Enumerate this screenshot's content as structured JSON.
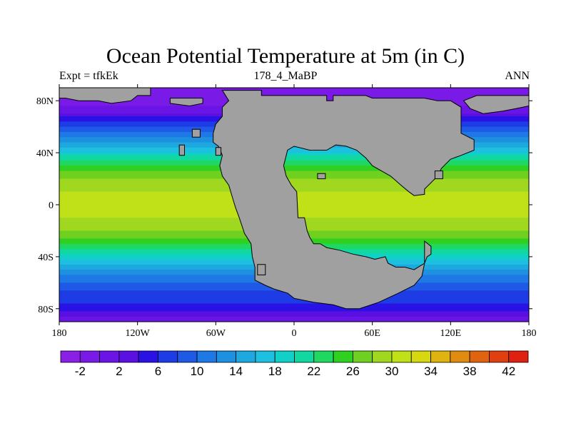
{
  "title": "Ocean Potential Temperature at 5m (in C)",
  "left_label": "Expt = tfkEk",
  "center_label": "178_4_MaBP",
  "right_label": "ANN",
  "x_ticks": [
    {
      "lon": -180,
      "label": "180"
    },
    {
      "lon": -120,
      "label": "120W"
    },
    {
      "lon": -60,
      "label": "60W"
    },
    {
      "lon": 0,
      "label": "0"
    },
    {
      "lon": 60,
      "label": "60E"
    },
    {
      "lon": 120,
      "label": "120E"
    },
    {
      "lon": 180,
      "label": "180"
    }
  ],
  "y_ticks": [
    {
      "lat": 80,
      "label": "80N"
    },
    {
      "lat": 40,
      "label": "40N"
    },
    {
      "lat": 0,
      "label": "0"
    },
    {
      "lat": -40,
      "label": "40S"
    },
    {
      "lat": -80,
      "label": "80S"
    }
  ],
  "lon_range": [
    -180,
    180
  ],
  "lat_range": [
    -90,
    90
  ],
  "land_color": "#a0a0a0",
  "colorbar": {
    "levels": [
      -4,
      -2,
      0,
      2,
      4,
      6,
      8,
      10,
      12,
      14,
      16,
      18,
      20,
      22,
      24,
      26,
      28,
      30,
      32,
      34,
      36,
      38,
      40,
      42,
      44
    ],
    "labels": [
      "-2",
      "2",
      "6",
      "10",
      "14",
      "18",
      "22",
      "26",
      "30",
      "34",
      "38",
      "42"
    ],
    "colors": [
      "#8a1fe6",
      "#7a1ae6",
      "#6a14e6",
      "#5a10e0",
      "#2a12e6",
      "#1e3ce6",
      "#1e5ae6",
      "#1e78e6",
      "#1e90e0",
      "#1ea8e0",
      "#1ec0e0",
      "#10d0c8",
      "#10d8a0",
      "#20d860",
      "#30d020",
      "#70d020",
      "#a0d820",
      "#c0e018",
      "#d8d810",
      "#e0b410",
      "#e08c10",
      "#e06410",
      "#e04010",
      "#e02010"
    ]
  },
  "bands": [
    {
      "lat": 90,
      "temp": -2
    },
    {
      "lat": 80,
      "temp": -1
    },
    {
      "lat": 72,
      "temp": 1
    },
    {
      "lat": 64,
      "temp": 6
    },
    {
      "lat": 56,
      "temp": 10
    },
    {
      "lat": 48,
      "temp": 14
    },
    {
      "lat": 40,
      "temp": 18
    },
    {
      "lat": 34,
      "temp": 22
    },
    {
      "lat": 28,
      "temp": 25
    },
    {
      "lat": 20,
      "temp": 28
    },
    {
      "lat": 10,
      "temp": 30
    },
    {
      "lat": 0,
      "temp": 31
    },
    {
      "lat": -10,
      "temp": 30
    },
    {
      "lat": -20,
      "temp": 28
    },
    {
      "lat": -30,
      "temp": 24
    },
    {
      "lat": -38,
      "temp": 20
    },
    {
      "lat": -46,
      "temp": 16
    },
    {
      "lat": -54,
      "temp": 12
    },
    {
      "lat": -62,
      "temp": 9
    },
    {
      "lat": -70,
      "temp": 7
    },
    {
      "lat": -80,
      "temp": 5
    },
    {
      "lat": -86,
      "temp": 2
    },
    {
      "lat": -90,
      "temp": 1
    }
  ],
  "land_masses": [
    {
      "name": "pangaea-main",
      "points": [
        [
          -55,
          88
        ],
        [
          -25,
          88
        ],
        [
          -25,
          84
        ],
        [
          25,
          84
        ],
        [
          25,
          80
        ],
        [
          30,
          80
        ],
        [
          30,
          84
        ],
        [
          55,
          84
        ],
        [
          60,
          82
        ],
        [
          100,
          82
        ],
        [
          110,
          80
        ],
        [
          120,
          80
        ],
        [
          128,
          75
        ],
        [
          128,
          55
        ],
        [
          138,
          50
        ],
        [
          138,
          42
        ],
        [
          128,
          38
        ],
        [
          120,
          35
        ],
        [
          113,
          28
        ],
        [
          110,
          22
        ],
        [
          100,
          12
        ],
        [
          100,
          8
        ],
        [
          92,
          7
        ],
        [
          88,
          10
        ],
        [
          82,
          15
        ],
        [
          74,
          22
        ],
        [
          60,
          30
        ],
        [
          55,
          36
        ],
        [
          48,
          42
        ],
        [
          40,
          45
        ],
        [
          32,
          46
        ],
        [
          25,
          42
        ],
        [
          12,
          42
        ],
        [
          0,
          45
        ],
        [
          -5,
          42
        ],
        [
          -8,
          30
        ],
        [
          -6,
          22
        ],
        [
          -2,
          15
        ],
        [
          2,
          10
        ],
        [
          3,
          -10
        ],
        [
          8,
          -10
        ],
        [
          10,
          -20
        ],
        [
          12,
          -25
        ],
        [
          15,
          -30
        ],
        [
          20,
          -30
        ],
        [
          25,
          -33
        ],
        [
          35,
          -35
        ],
        [
          45,
          -38
        ],
        [
          55,
          -40
        ],
        [
          62,
          -42
        ],
        [
          70,
          -40
        ],
        [
          72,
          -45
        ],
        [
          78,
          -48
        ],
        [
          85,
          -48
        ],
        [
          92,
          -50
        ],
        [
          100,
          -45
        ],
        [
          102,
          -40
        ],
        [
          105,
          -38
        ],
        [
          105,
          -32
        ],
        [
          100,
          -28
        ],
        [
          100,
          -45
        ],
        [
          98,
          -55
        ],
        [
          92,
          -62
        ],
        [
          80,
          -68
        ],
        [
          65,
          -75
        ],
        [
          50,
          -80
        ],
        [
          40,
          -80
        ],
        [
          30,
          -77
        ],
        [
          15,
          -75
        ],
        [
          0,
          -72
        ],
        [
          -5,
          -68
        ],
        [
          -15,
          -65
        ],
        [
          -22,
          -62
        ],
        [
          -30,
          -58
        ],
        [
          -30,
          -48
        ],
        [
          -32,
          -40
        ],
        [
          -33,
          -30
        ],
        [
          -38,
          -22
        ],
        [
          -42,
          -10
        ],
        [
          -45,
          -2
        ],
        [
          -48,
          8
        ],
        [
          -50,
          15
        ],
        [
          -55,
          22
        ],
        [
          -57,
          30
        ],
        [
          -55,
          38
        ],
        [
          -58,
          45
        ],
        [
          -62,
          48
        ],
        [
          -62,
          55
        ],
        [
          -60,
          62
        ],
        [
          -55,
          68
        ],
        [
          -55,
          75
        ],
        [
          -50,
          80
        ],
        [
          -55,
          88
        ]
      ]
    },
    {
      "name": "north-polar-land-west",
      "points": [
        [
          -180,
          90
        ],
        [
          -110,
          90
        ],
        [
          -110,
          84
        ],
        [
          -120,
          84
        ],
        [
          -125,
          80
        ],
        [
          -140,
          78
        ],
        [
          -150,
          80
        ],
        [
          -165,
          80
        ],
        [
          -175,
          82
        ],
        [
          -180,
          82
        ]
      ]
    },
    {
      "name": "north-polar-land-center",
      "points": [
        [
          -95,
          82
        ],
        [
          -70,
          82
        ],
        [
          -70,
          78
        ],
        [
          -80,
          76
        ],
        [
          -95,
          78
        ]
      ]
    },
    {
      "name": "north-polar-land-east",
      "points": [
        [
          140,
          84
        ],
        [
          180,
          84
        ],
        [
          180,
          76
        ],
        [
          170,
          74
        ],
        [
          160,
          72
        ],
        [
          145,
          70
        ],
        [
          135,
          74
        ],
        [
          130,
          80
        ]
      ]
    },
    {
      "name": "small-island-1",
      "points": [
        [
          -88,
          46
        ],
        [
          -84,
          46
        ],
        [
          -84,
          38
        ],
        [
          -88,
          38
        ]
      ]
    },
    {
      "name": "small-island-2",
      "points": [
        [
          -78,
          58
        ],
        [
          -72,
          58
        ],
        [
          -72,
          52
        ],
        [
          -78,
          52
        ]
      ]
    },
    {
      "name": "small-island-3",
      "points": [
        [
          -60,
          44
        ],
        [
          -56,
          44
        ],
        [
          -56,
          38
        ],
        [
          -60,
          38
        ]
      ]
    },
    {
      "name": "small-island-4",
      "points": [
        [
          18,
          24
        ],
        [
          24,
          24
        ],
        [
          24,
          20
        ],
        [
          18,
          20
        ]
      ]
    },
    {
      "name": "small-island-5",
      "points": [
        [
          -28,
          -46
        ],
        [
          -22,
          -46
        ],
        [
          -22,
          -54
        ],
        [
          -28,
          -54
        ]
      ]
    },
    {
      "name": "small-island-6",
      "points": [
        [
          108,
          26
        ],
        [
          114,
          26
        ],
        [
          114,
          20
        ],
        [
          108,
          20
        ]
      ]
    }
  ]
}
